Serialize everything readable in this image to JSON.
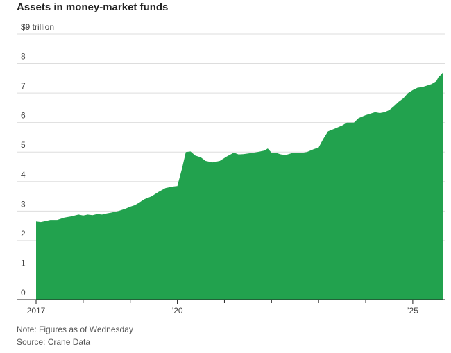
{
  "chart_data": {
    "type": "area",
    "title": "Assets in money-market funds",
    "unit_label": "$9 trillion",
    "ylim": [
      0,
      9
    ],
    "xlim": [
      2017.0,
      2025.65
    ],
    "y_ticks": [
      {
        "value": 9,
        "label": "$9 trillion"
      },
      {
        "value": 8,
        "label": "8"
      },
      {
        "value": 7,
        "label": "7"
      },
      {
        "value": 6,
        "label": "6"
      },
      {
        "value": 5,
        "label": "5"
      },
      {
        "value": 4,
        "label": "4"
      },
      {
        "value": 3,
        "label": "3"
      },
      {
        "value": 2,
        "label": "2"
      },
      {
        "value": 1,
        "label": "1"
      },
      {
        "value": 0,
        "label": "0"
      }
    ],
    "x_ticks": [
      {
        "value": 2017,
        "label": "2017"
      },
      {
        "value": 2018,
        "label": ""
      },
      {
        "value": 2019,
        "label": ""
      },
      {
        "value": 2020,
        "label": "’20"
      },
      {
        "value": 2021,
        "label": ""
      },
      {
        "value": 2022,
        "label": ""
      },
      {
        "value": 2023,
        "label": ""
      },
      {
        "value": 2024,
        "label": ""
      },
      {
        "value": 2025,
        "label": "’25"
      }
    ],
    "color": "#22a24e",
    "series": [
      {
        "name": "Assets in money-market funds ($ trillion)",
        "x": [
          2017.0,
          2017.1,
          2017.2,
          2017.3,
          2017.45,
          2017.6,
          2017.75,
          2017.9,
          2018.0,
          2018.1,
          2018.2,
          2018.3,
          2018.4,
          2018.5,
          2018.6,
          2018.75,
          2018.9,
          2019.0,
          2019.1,
          2019.2,
          2019.3,
          2019.45,
          2019.6,
          2019.75,
          2019.9,
          2020.0,
          2020.1,
          2020.18,
          2020.28,
          2020.38,
          2020.5,
          2020.6,
          2020.75,
          2020.9,
          2021.05,
          2021.2,
          2021.3,
          2021.4,
          2021.55,
          2021.7,
          2021.85,
          2021.92,
          2022.0,
          2022.1,
          2022.2,
          2022.3,
          2022.45,
          2022.6,
          2022.75,
          2022.9,
          2023.0,
          2023.1,
          2023.2,
          2023.35,
          2023.5,
          2023.6,
          2023.75,
          2023.85,
          2024.0,
          2024.1,
          2024.2,
          2024.3,
          2024.4,
          2024.5,
          2024.6,
          2024.7,
          2024.8,
          2024.9,
          2025.0,
          2025.1,
          2025.2,
          2025.3,
          2025.4,
          2025.5,
          2025.55,
          2025.6,
          2025.65
        ],
        "values": [
          2.65,
          2.63,
          2.66,
          2.7,
          2.7,
          2.78,
          2.82,
          2.88,
          2.85,
          2.88,
          2.86,
          2.9,
          2.88,
          2.92,
          2.95,
          3.0,
          3.08,
          3.15,
          3.2,
          3.3,
          3.4,
          3.5,
          3.65,
          3.78,
          3.83,
          3.85,
          4.45,
          5.0,
          5.02,
          4.88,
          4.82,
          4.7,
          4.65,
          4.7,
          4.85,
          4.98,
          4.92,
          4.93,
          4.96,
          5.0,
          5.05,
          5.12,
          4.98,
          4.97,
          4.92,
          4.9,
          4.97,
          4.96,
          5.0,
          5.1,
          5.15,
          5.45,
          5.7,
          5.8,
          5.9,
          6.0,
          6.0,
          6.15,
          6.25,
          6.3,
          6.35,
          6.32,
          6.35,
          6.42,
          6.55,
          6.7,
          6.82,
          7.0,
          7.1,
          7.18,
          7.2,
          7.25,
          7.3,
          7.4,
          7.55,
          7.62,
          7.72
        ]
      }
    ],
    "notes": [
      "Note: Figures as of Wednesday",
      "Source: Crane Data"
    ]
  }
}
